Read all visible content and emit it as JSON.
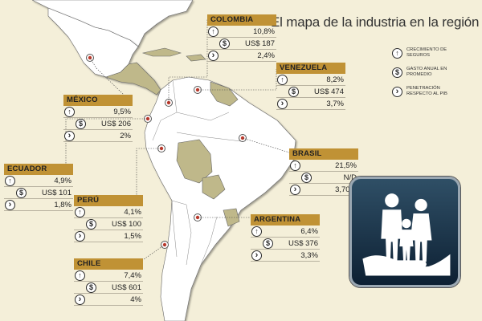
{
  "title": "El mapa de la industria en la región",
  "legend": {
    "items": [
      {
        "icon": "up-arrow-icon",
        "text": "CRECIMIENTO DE SEGUROS"
      },
      {
        "icon": "dollar-icon",
        "text": "GASTO ANUAL EN PROMEDIO"
      },
      {
        "icon": "chevron-right-icon",
        "text": "PENETRACIÓN RESPECTO AL PIB"
      }
    ]
  },
  "countries": [
    {
      "name": "COLOMBIA",
      "growth": "10,8%",
      "spend": "US$ 187",
      "penetration": "2,4%"
    },
    {
      "name": "VENEZUELA",
      "growth": "8,2%",
      "spend": "US$ 474",
      "penetration": "3,7%"
    },
    {
      "name": "MÉXICO",
      "growth": "9,5%",
      "spend": "US$ 206",
      "penetration": "2%"
    },
    {
      "name": "ECUADOR",
      "growth": "4,9%",
      "spend": "US$ 101",
      "penetration": "1,8%"
    },
    {
      "name": "BRASIL",
      "growth": "21,5%",
      "spend": "N/D",
      "penetration": "3,70%"
    },
    {
      "name": "PERÚ",
      "growth": "4,1%",
      "spend": "US$ 100",
      "penetration": "1,5%"
    },
    {
      "name": "ARGENTINA",
      "growth": "6,4%",
      "spend": "US$ 376",
      "penetration": "3,3%"
    },
    {
      "name": "CHILE",
      "growth": "7,4%",
      "spend": "US$ 601",
      "penetration": "4%"
    }
  ],
  "colors": {
    "ocean": "#f4efd9",
    "land_highlight": "#ffffff",
    "land_other": "#bfb88a",
    "header": "#c09235",
    "icon_box": "#1e3a52"
  }
}
